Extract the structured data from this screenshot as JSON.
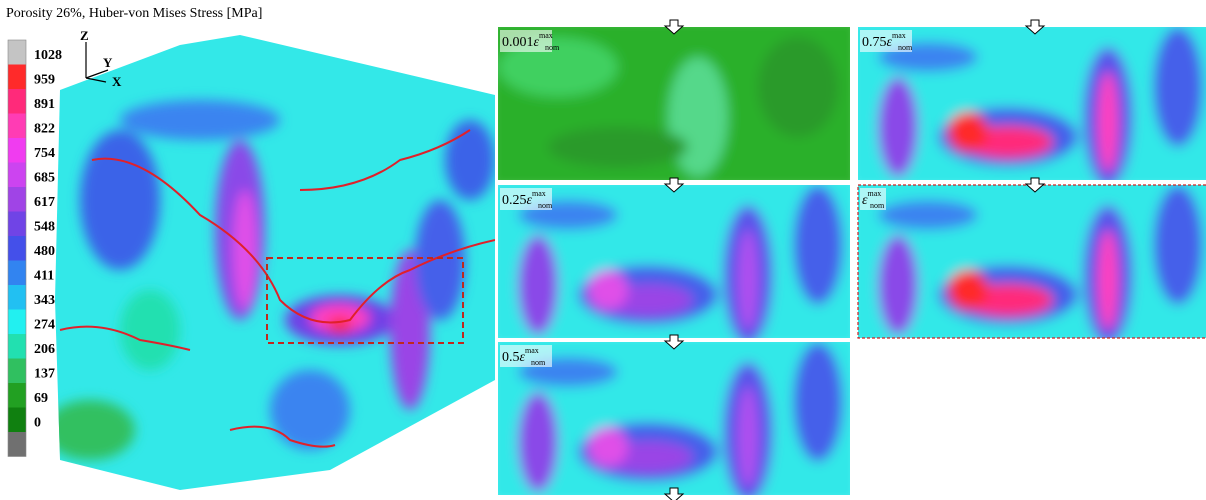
{
  "title": "Porosity 26%, Huber-von Mises Stress [MPa]",
  "axes": {
    "z": "Z",
    "y": "Y",
    "x": "X"
  },
  "colorbar": {
    "levels": [
      {
        "value": 1028,
        "color": "#c4c4c4"
      },
      {
        "value": 959,
        "color": "#ff2a2a"
      },
      {
        "value": 891,
        "color": "#ff2a7a"
      },
      {
        "value": 822,
        "color": "#ff3cb4"
      },
      {
        "value": 754,
        "color": "#f03cf0"
      },
      {
        "value": 685,
        "color": "#cc44f0"
      },
      {
        "value": 617,
        "color": "#a044e6"
      },
      {
        "value": 548,
        "color": "#7044e6"
      },
      {
        "value": 480,
        "color": "#4450ea"
      },
      {
        "value": 411,
        "color": "#3284f0"
      },
      {
        "value": 343,
        "color": "#22c0f2"
      },
      {
        "value": 274,
        "color": "#22f0f0"
      },
      {
        "value": 206,
        "color": "#22e0b0"
      },
      {
        "value": 137,
        "color": "#30c060"
      },
      {
        "value": 69,
        "color": "#22a022"
      },
      {
        "value": 0,
        "color": "#108010"
      }
    ]
  },
  "panels": [
    {
      "factor": "0.001",
      "symbol": "ε",
      "sub": "nom",
      "sup": "max"
    },
    {
      "factor": "0.75",
      "symbol": "ε",
      "sub": "nom",
      "sup": "max"
    },
    {
      "factor": "0.25",
      "symbol": "ε",
      "sub": "nom",
      "sup": "max"
    },
    {
      "symbol": "ε",
      "sub": "nom",
      "sup": "max"
    },
    {
      "factor": "0.5",
      "symbol": "ε",
      "sub": "nom",
      "sup": "max"
    }
  ]
}
